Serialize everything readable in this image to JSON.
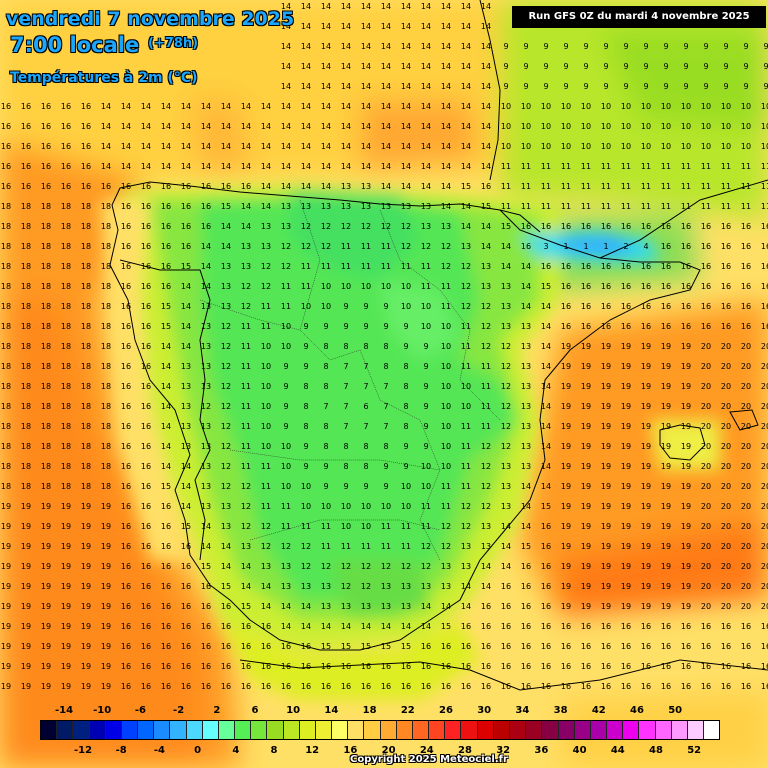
{
  "header": {
    "date": "vendredi 7 novembre 2025",
    "time": "7:00 locale",
    "offset": "(+78h)",
    "variable": "Températures à 2m (°C)"
  },
  "run_info": "Run GFS 0Z du mardi 4 novembre 2025",
  "copyright": "Copyright 2025 Meteociel.fr",
  "legend": {
    "labels_top": [
      "-14",
      "-10",
      "-6",
      "-2",
      "2",
      "6",
      "10",
      "14",
      "18",
      "22",
      "26",
      "30",
      "34",
      "38",
      "42",
      "46",
      "50"
    ],
    "labels_bottom": [
      "-12",
      "-8",
      "-4",
      "0",
      "4",
      "8",
      "12",
      "16",
      "20",
      "24",
      "28",
      "32",
      "36",
      "40",
      "44",
      "48",
      "52"
    ],
    "colors": [
      "#000033",
      "#001a66",
      "#002080",
      "#0000b3",
      "#0000e6",
      "#0040ff",
      "#0066ff",
      "#1a8cff",
      "#33b3ff",
      "#4dd9ff",
      "#66ffff",
      "#66ff99",
      "#55ee55",
      "#77e63c",
      "#99dd22",
      "#bbe622",
      "#ddee22",
      "#eeee33",
      "#ffff66",
      "#ffe066",
      "#ffcc44",
      "#ffaa33",
      "#ff8822",
      "#ff6622",
      "#ff4422",
      "#ff2222",
      "#ee1111",
      "#dd0000",
      "#bb0000",
      "#aa0011",
      "#990022",
      "#880044",
      "#880066",
      "#990088",
      "#aa00aa",
      "#cc00cc",
      "#ee00ee",
      "#ff33ff",
      "#ff66ff",
      "#ff99ff",
      "#ffccff",
      "#ffffff"
    ]
  },
  "icons": {
    "map": "temperature-map-iberia",
    "borders": "country-borders-icon"
  }
}
